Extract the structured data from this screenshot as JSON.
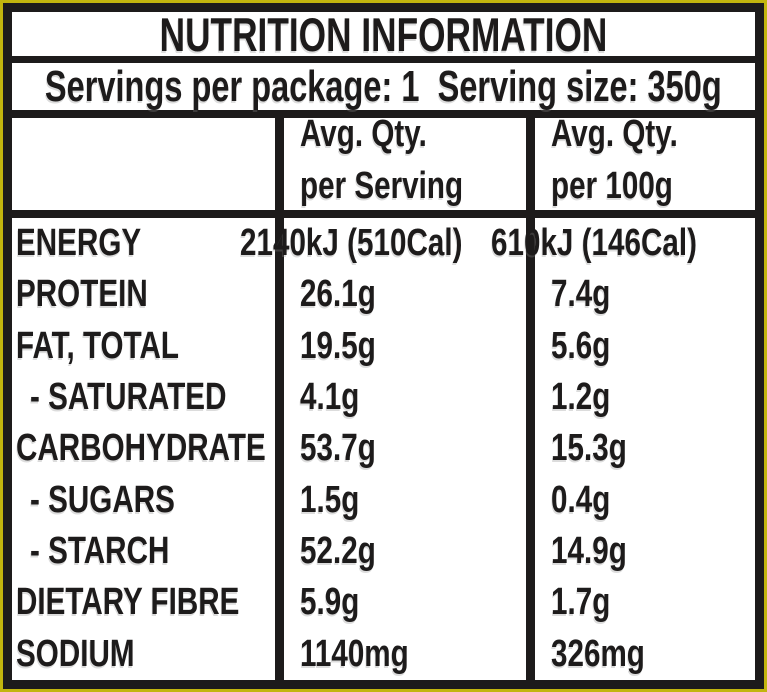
{
  "title": "NUTRITION INFORMATION",
  "servings_line": "Servings per package: 1  Serving size: 350g",
  "header": {
    "per_serving": {
      "line1": "Avg. Qty.",
      "line2": "per Serving"
    },
    "per_100g": {
      "line1": "Avg. Qty.",
      "line2": "per 100g"
    }
  },
  "rows": [
    {
      "label": "ENERGY",
      "indent": false,
      "per_serving": "2140kJ (510Cal)",
      "per_100g": "610kJ (146Cal)"
    },
    {
      "label": "PROTEIN",
      "indent": false,
      "per_serving": "26.1g",
      "per_100g": "7.4g"
    },
    {
      "label": "FAT, TOTAL",
      "indent": false,
      "per_serving": "19.5g",
      "per_100g": "5.6g"
    },
    {
      "label": "- SATURATED",
      "indent": true,
      "per_serving": "4.1g",
      "per_100g": "1.2g"
    },
    {
      "label": "CARBOHYDRATE",
      "indent": false,
      "per_serving": "53.7g",
      "per_100g": "15.3g"
    },
    {
      "label": "- SUGARS",
      "indent": true,
      "per_serving": "1.5g",
      "per_100g": "0.4g"
    },
    {
      "label": "- STARCH",
      "indent": true,
      "per_serving": "52.2g",
      "per_100g": "14.9g"
    },
    {
      "label": "DIETARY FIBRE",
      "indent": false,
      "per_serving": "5.9g",
      "per_100g": "1.7g"
    },
    {
      "label": "SODIUM",
      "indent": false,
      "per_serving": "1140mg",
      "per_100g": "326mg"
    }
  ],
  "colors": {
    "outer_edge": "#c2b50e",
    "frame_and_text": "#1d1b1b",
    "background": "#ffffff"
  }
}
